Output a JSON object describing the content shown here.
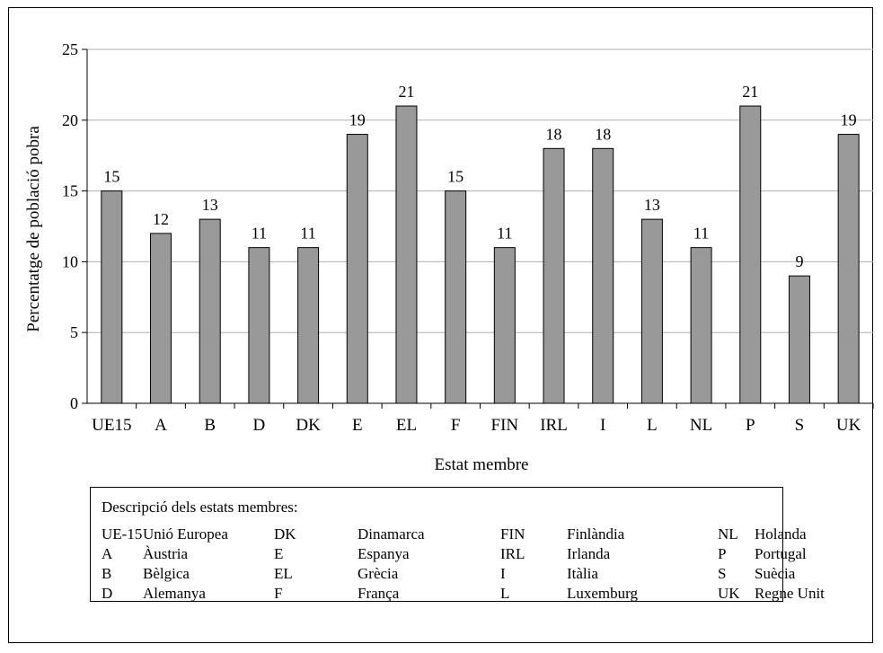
{
  "chart_data": {
    "type": "bar",
    "ylabel": "Percentatge de població pobra",
    "xlabel": "Estat membre",
    "ylim": [
      0,
      25
    ],
    "yticks": [
      0,
      5,
      10,
      15,
      20,
      25
    ],
    "grid": true,
    "bar_color": "#999999",
    "categories": [
      "UE15",
      "A",
      "B",
      "D",
      "DK",
      "E",
      "EL",
      "F",
      "FIN",
      "IRL",
      "I",
      "L",
      "NL",
      "P",
      "S",
      "UK"
    ],
    "values": [
      15,
      12,
      13,
      11,
      11,
      19,
      21,
      15,
      11,
      18,
      18,
      13,
      11,
      21,
      9,
      19
    ],
    "data_labels": true
  },
  "legend": {
    "title": "Descripció dels estats membres:",
    "columns": [
      [
        {
          "code": "UE-15",
          "name": "Unió Europea"
        },
        {
          "code": "A",
          "name": "Àustria"
        },
        {
          "code": "B",
          "name": "Bèlgica"
        },
        {
          "code": "D",
          "name": "Alemanya"
        }
      ],
      [
        {
          "code": "DK",
          "name": "Dinamarca"
        },
        {
          "code": "E",
          "name": "Espanya"
        },
        {
          "code": "EL",
          "name": "Grècia"
        },
        {
          "code": "F",
          "name": "França"
        }
      ],
      [
        {
          "code": "FIN",
          "name": "Finlàndia"
        },
        {
          "code": "IRL",
          "name": "Irlanda"
        },
        {
          "code": "I",
          "name": "Itàlia"
        },
        {
          "code": "L",
          "name": "Luxemburg"
        }
      ],
      [
        {
          "code": "NL",
          "name": "Holanda"
        },
        {
          "code": "P",
          "name": "Portugal"
        },
        {
          "code": "S",
          "name": "Suècia"
        },
        {
          "code": "UK",
          "name": "Regne Unit"
        }
      ]
    ]
  }
}
